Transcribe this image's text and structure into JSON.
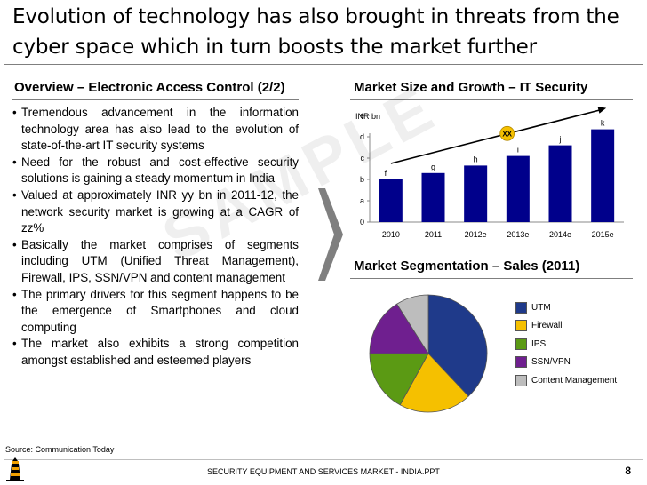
{
  "title": "Evolution of technology has also brought in threats from the cyber space which in turn boosts the market further",
  "left_section": {
    "heading": "Overview – Electronic Access Control (2/2)",
    "bullets": [
      "Tremendous advancement in the information technology area has also lead to the evolution of state-of-the-art IT security systems",
      "Need for the robust and cost-effective security solutions is gaining a steady momentum in India",
      "Valued at approximately INR yy bn in 2011-12, the network security market is growing at a CAGR of zz%",
      "Basically the market comprises of segments including UTM (Unified Threat Management), Firewall, IPS, SSN/VPN and content management",
      "The primary drivers for this segment happens to be the emergence of Smartphones and cloud computing",
      "The market also exhibits a strong competition amongst established and esteemed players"
    ]
  },
  "chart_data": [
    {
      "type": "bar",
      "title": "Market Size and Growth – IT Security",
      "ylabel": "INR bn",
      "categories": [
        "2010",
        "2011",
        "2012e",
        "2013e",
        "2014e",
        "2015e"
      ],
      "values": [
        2.0,
        2.3,
        2.65,
        3.1,
        3.6,
        4.35
      ],
      "data_labels": [
        "f",
        "g",
        "h",
        "i",
        "j",
        "k"
      ],
      "y_ticks": [
        "0",
        "a",
        "b",
        "c",
        "d",
        "e"
      ],
      "ylim": [
        0,
        5
      ],
      "trend_label": "XX",
      "bar_color": "#00008b"
    },
    {
      "type": "pie",
      "title": "Market Segmentation – Sales (2011)",
      "labels": [
        "UTM",
        "Firewall",
        "IPS",
        "SSN/VPN",
        "Content Management"
      ],
      "values": [
        38,
        20,
        17,
        16,
        9
      ],
      "colors": [
        "#1f3a8a",
        "#f5c000",
        "#5b9a14",
        "#6f1f8f",
        "#bdbdbd"
      ]
    }
  ],
  "watermark": "SAMPLE",
  "source": "Source: Communication Today",
  "footer": "SECURITY EQUIPMENT AND SERVICES MARKET - INDIA.PPT",
  "page_number": "8"
}
